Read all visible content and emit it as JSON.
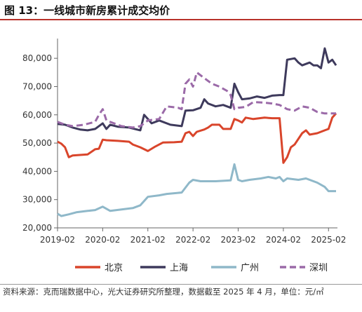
{
  "figure": {
    "title": "图 13：一线城市新房累计成交均价",
    "source": "资料来源：克而瑞数据中心，光大证券研究所整理，数据截至 2025 年 4 月，单位：元/",
    "unit_suffix": "㎡"
  },
  "chart_data": {
    "type": "line",
    "title": "",
    "xlabel": "",
    "ylabel": "",
    "ylim": [
      20000,
      85000
    ],
    "xlim": [
      "2019-02",
      "2025-04"
    ],
    "yticks": [
      20000,
      30000,
      40000,
      50000,
      60000,
      70000,
      80000
    ],
    "ytick_labels": [
      "20,000",
      "30,000",
      "40,000",
      "50,000",
      "60,000",
      "70,000",
      "80,000"
    ],
    "xticks": [
      "2019-02",
      "2020-02",
      "2021-02",
      "2022-02",
      "2023-02",
      "2024-02",
      "2025-02"
    ],
    "grid": false,
    "legend_position": "bottom",
    "series": [
      {
        "name": "北京",
        "color": "#d9452b",
        "dash": "solid",
        "points": [
          [
            "2019-02",
            50500
          ],
          [
            "2019-03",
            49800
          ],
          [
            "2019-04",
            48500
          ],
          [
            "2019-05",
            45000
          ],
          [
            "2019-06",
            45600
          ],
          [
            "2019-08",
            45800
          ],
          [
            "2019-10",
            46000
          ],
          [
            "2019-12",
            47800
          ],
          [
            "2020-01",
            48000
          ],
          [
            "2020-02",
            51200
          ],
          [
            "2020-03",
            51000
          ],
          [
            "2020-06",
            50800
          ],
          [
            "2020-09",
            50500
          ],
          [
            "2020-10",
            49500
          ],
          [
            "2020-12",
            48500
          ],
          [
            "2021-02",
            47200
          ],
          [
            "2021-04",
            48800
          ],
          [
            "2021-06",
            50200
          ],
          [
            "2021-09",
            50300
          ],
          [
            "2021-11",
            50500
          ],
          [
            "2021-12",
            53500
          ],
          [
            "2022-01",
            54000
          ],
          [
            "2022-02",
            52500
          ],
          [
            "2022-03",
            54000
          ],
          [
            "2022-05",
            54800
          ],
          [
            "2022-06",
            55500
          ],
          [
            "2022-07",
            56500
          ],
          [
            "2022-09",
            56500
          ],
          [
            "2022-10",
            55000
          ],
          [
            "2022-12",
            55000
          ],
          [
            "2023-01",
            58500
          ],
          [
            "2023-02",
            58000
          ],
          [
            "2023-03",
            57300
          ],
          [
            "2023-04",
            59000
          ],
          [
            "2023-06",
            58500
          ],
          [
            "2023-09",
            59000
          ],
          [
            "2023-11",
            58800
          ],
          [
            "2024-01",
            58800
          ],
          [
            "2024-02",
            43000
          ],
          [
            "2024-03",
            45000
          ],
          [
            "2024-04",
            48500
          ],
          [
            "2024-05",
            49500
          ],
          [
            "2024-07",
            53500
          ],
          [
            "2024-08",
            54500
          ],
          [
            "2024-09",
            53000
          ],
          [
            "2024-11",
            53500
          ],
          [
            "2025-01",
            54500
          ],
          [
            "2025-02",
            55000
          ],
          [
            "2025-03",
            59000
          ],
          [
            "2025-04",
            60500
          ]
        ]
      },
      {
        "name": "上海",
        "color": "#3e3a5c",
        "dash": "solid",
        "points": [
          [
            "2019-02",
            56800
          ],
          [
            "2019-04",
            56500
          ],
          [
            "2019-06",
            55500
          ],
          [
            "2019-08",
            54800
          ],
          [
            "2019-10",
            54500
          ],
          [
            "2019-12",
            55000
          ],
          [
            "2020-02",
            57000
          ],
          [
            "2020-03",
            55000
          ],
          [
            "2020-04",
            56500
          ],
          [
            "2020-06",
            55800
          ],
          [
            "2020-09",
            55500
          ],
          [
            "2020-12",
            54500
          ],
          [
            "2021-01",
            60000
          ],
          [
            "2021-02",
            58500
          ],
          [
            "2021-03",
            57000
          ],
          [
            "2021-05",
            58000
          ],
          [
            "2021-08",
            56500
          ],
          [
            "2021-11",
            56000
          ],
          [
            "2021-12",
            61500
          ],
          [
            "2022-02",
            61600
          ],
          [
            "2022-04",
            62500
          ],
          [
            "2022-05",
            65500
          ],
          [
            "2022-06",
            64000
          ],
          [
            "2022-08",
            63000
          ],
          [
            "2022-10",
            63500
          ],
          [
            "2022-12",
            62500
          ],
          [
            "2023-01",
            71000
          ],
          [
            "2023-02",
            68000
          ],
          [
            "2023-03",
            65500
          ],
          [
            "2023-05",
            65800
          ],
          [
            "2023-07",
            66500
          ],
          [
            "2023-09",
            66000
          ],
          [
            "2023-11",
            66800
          ],
          [
            "2024-01",
            67000
          ],
          [
            "2024-02",
            67000
          ],
          [
            "2024-03",
            79500
          ],
          [
            "2024-05",
            80000
          ],
          [
            "2024-06",
            78500
          ],
          [
            "2024-07",
            77500
          ],
          [
            "2024-09",
            78500
          ],
          [
            "2024-10",
            77500
          ],
          [
            "2024-11",
            77500
          ],
          [
            "2024-12",
            76500
          ],
          [
            "2025-01",
            83500
          ],
          [
            "2025-02",
            78500
          ],
          [
            "2025-03",
            79500
          ],
          [
            "2025-04",
            77500
          ]
        ]
      },
      {
        "name": "广州",
        "color": "#8fb8c9",
        "dash": "solid",
        "points": [
          [
            "2019-02",
            25000
          ],
          [
            "2019-03",
            24200
          ],
          [
            "2019-05",
            24800
          ],
          [
            "2019-07",
            25500
          ],
          [
            "2019-10",
            26000
          ],
          [
            "2019-12",
            26300
          ],
          [
            "2020-02",
            27500
          ],
          [
            "2020-04",
            26000
          ],
          [
            "2020-07",
            26500
          ],
          [
            "2020-10",
            27000
          ],
          [
            "2020-12",
            28000
          ],
          [
            "2021-02",
            31000
          ],
          [
            "2021-05",
            31500
          ],
          [
            "2021-07",
            32000
          ],
          [
            "2021-11",
            32500
          ],
          [
            "2022-01",
            36000
          ],
          [
            "2022-02",
            37000
          ],
          [
            "2022-04",
            36500
          ],
          [
            "2022-08",
            36500
          ],
          [
            "2022-12",
            36800
          ],
          [
            "2023-01",
            42500
          ],
          [
            "2023-02",
            37000
          ],
          [
            "2023-03",
            36500
          ],
          [
            "2023-05",
            37000
          ],
          [
            "2023-08",
            37500
          ],
          [
            "2023-10",
            38000
          ],
          [
            "2023-12",
            37500
          ],
          [
            "2024-01",
            38000
          ],
          [
            "2024-02",
            36500
          ],
          [
            "2024-03",
            37500
          ],
          [
            "2024-06",
            37000
          ],
          [
            "2024-08",
            37500
          ],
          [
            "2024-11",
            36000
          ],
          [
            "2025-01",
            34500
          ],
          [
            "2025-02",
            33000
          ],
          [
            "2025-04",
            33000
          ]
        ]
      },
      {
        "name": "深圳",
        "color": "#9b6aa8",
        "dash": "dashed",
        "points": [
          [
            "2019-02",
            57500
          ],
          [
            "2019-04",
            56500
          ],
          [
            "2019-06",
            56000
          ],
          [
            "2019-09",
            56500
          ],
          [
            "2019-12",
            57500
          ],
          [
            "2020-01",
            60000
          ],
          [
            "2020-02",
            62000
          ],
          [
            "2020-03",
            58000
          ],
          [
            "2020-05",
            57000
          ],
          [
            "2020-07",
            56000
          ],
          [
            "2020-10",
            55500
          ],
          [
            "2020-12",
            56000
          ],
          [
            "2021-02",
            58000
          ],
          [
            "2021-05",
            58500
          ],
          [
            "2021-07",
            63000
          ],
          [
            "2021-10",
            62500
          ],
          [
            "2021-11",
            62000
          ],
          [
            "2021-12",
            71000
          ],
          [
            "2022-01",
            72500
          ],
          [
            "2022-02",
            70000
          ],
          [
            "2022-03",
            75000
          ],
          [
            "2022-05",
            73000
          ],
          [
            "2022-07",
            71000
          ],
          [
            "2022-09",
            70000
          ],
          [
            "2022-11",
            68500
          ],
          [
            "2022-12",
            67000
          ],
          [
            "2023-01",
            62000
          ],
          [
            "2023-02",
            62500
          ],
          [
            "2023-04",
            62800
          ],
          [
            "2023-06",
            64500
          ],
          [
            "2023-09",
            64300
          ],
          [
            "2023-11",
            64000
          ],
          [
            "2024-01",
            63500
          ],
          [
            "2024-03",
            62000
          ],
          [
            "2024-05",
            61500
          ],
          [
            "2024-07",
            63000
          ],
          [
            "2024-09",
            62500
          ],
          [
            "2024-11",
            61000
          ],
          [
            "2025-01",
            60500
          ],
          [
            "2025-04",
            60500
          ]
        ]
      }
    ]
  }
}
